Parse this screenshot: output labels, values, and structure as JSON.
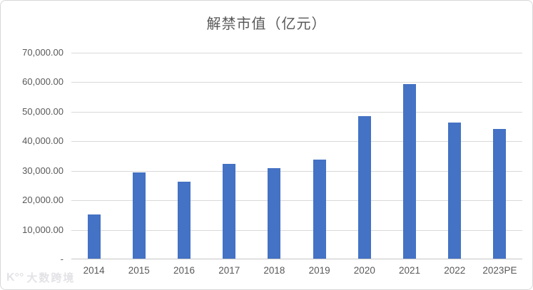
{
  "title": "解禁市值（亿元）",
  "watermark": {
    "logo_text": "K°°",
    "text": "大数跨境"
  },
  "chart_data": {
    "type": "bar",
    "title": "解禁市值（亿元）",
    "categories": [
      "2014",
      "2015",
      "2016",
      "2017",
      "2018",
      "2019",
      "2020",
      "2021",
      "2022",
      "2023PE"
    ],
    "values": [
      15200,
      29400,
      26400,
      32300,
      31000,
      33800,
      48600,
      59300,
      46400,
      44100
    ],
    "xlabel": "",
    "ylabel": "",
    "ylim": [
      0,
      70000
    ],
    "ytick_step": 10000,
    "ytick_labels_top_to_bottom": [
      "70,000.00",
      "60,000.00",
      "50,000.00",
      "40,000.00",
      "30,000.00",
      "20,000.00",
      "10,000.00",
      "-"
    ],
    "bar_color": "#4472C4",
    "gridline_color": "#D9D9D9",
    "axis_label_color": "#595959",
    "title_color": "#595959",
    "grid": true,
    "legend_position": "none"
  }
}
